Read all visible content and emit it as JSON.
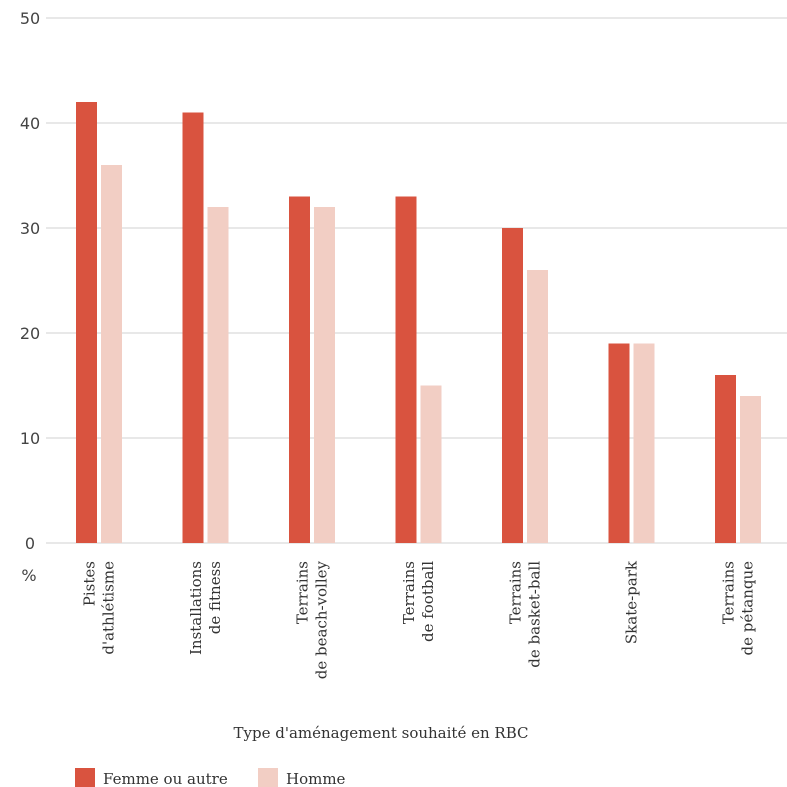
{
  "chart_data": {
    "type": "bar",
    "categories": [
      [
        "Pistes",
        "d'athlétisme"
      ],
      [
        "Installations",
        "de fitness"
      ],
      [
        "Terrains",
        "de beach-volley"
      ],
      [
        "Terrains",
        "de football"
      ],
      [
        "Terrains",
        "de basket-ball"
      ],
      [
        "Skate-park"
      ],
      [
        "Terrains",
        "de pétanque"
      ]
    ],
    "series": [
      {
        "name": "Femme ou autre",
        "color": "#d9533f",
        "values": [
          42,
          41,
          33,
          33,
          30,
          19,
          16
        ]
      },
      {
        "name": "Homme",
        "color": "#f2cec4",
        "values": [
          36,
          32,
          32,
          15,
          26,
          19,
          14
        ]
      }
    ],
    "xlabel": "Type d'aménagement souhaité en RBC",
    "ylabel": "%",
    "ylim": [
      0,
      50
    ],
    "yticks": [
      0,
      10,
      20,
      30,
      40,
      50
    ],
    "grid": true,
    "legend_position": "bottom-left"
  }
}
